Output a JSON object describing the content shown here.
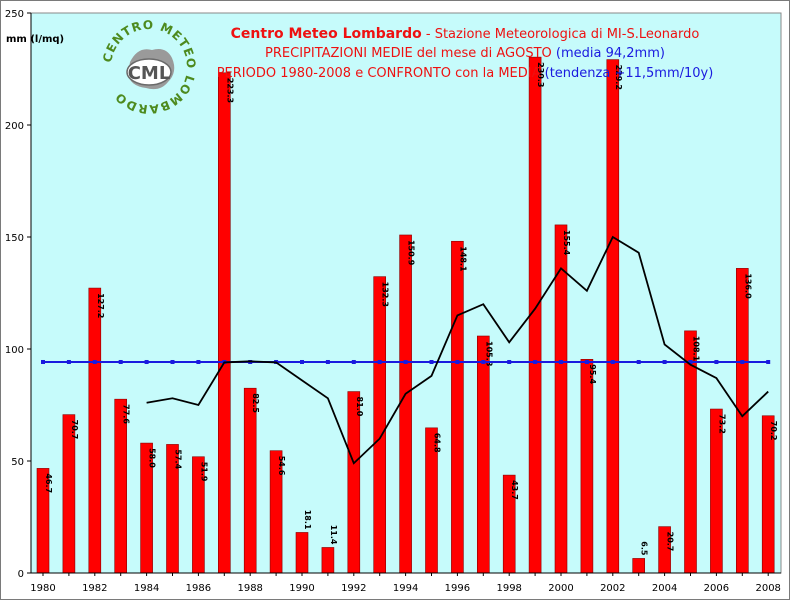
{
  "header": {
    "org": "Centro Meteo Lombardo",
    "station": " - Stazione Meteorologica di MI-S.Leonardo",
    "line2_main": "PRECIPITAZIONI MEDIE del mese di AGOSTO",
    "line2_mean": " (media 94,2mm)",
    "line3_main": "PERIODO 1980-2008 e CONFRONTO con la MEDIA",
    "line3_trend": " (tendenza +11,5mm/10y)"
  },
  "logo": {
    "ring_text": "CENTRO METEO LOMBARDO",
    "badge": "CML"
  },
  "colors": {
    "plot_bg": "#c6fbfb",
    "bar": "#ff0000",
    "mean_line": "#1a1adf",
    "moving_avg": "#000000"
  },
  "chart_data": {
    "type": "bar",
    "ylabel": "mm (l/mq)",
    "ylim": [
      0,
      250
    ],
    "yticks": [
      0,
      50,
      100,
      150,
      200,
      250
    ],
    "x_tick_labels": [
      "1980",
      "1982",
      "1984",
      "1986",
      "1988",
      "1990",
      "1992",
      "1994",
      "1996",
      "1998",
      "2000",
      "2002",
      "2004",
      "2006",
      "2008"
    ],
    "categories": [
      1980,
      1981,
      1982,
      1983,
      1984,
      1985,
      1986,
      1987,
      1988,
      1989,
      1990,
      1991,
      1992,
      1993,
      1994,
      1995,
      1996,
      1997,
      1998,
      1999,
      2000,
      2001,
      2002,
      2003,
      2004,
      2005,
      2006,
      2007,
      2008
    ],
    "series": [
      {
        "type": "bar",
        "values": [
          46.7,
          70.7,
          127.2,
          77.6,
          58.0,
          57.4,
          51.9,
          223.3,
          82.5,
          54.6,
          18.1,
          11.4,
          81.0,
          132.3,
          150.9,
          64.8,
          148.1,
          105.8,
          43.7,
          230.3,
          155.4,
          95.4,
          229.2,
          6.5,
          20.7,
          108.1,
          73.2,
          136.0,
          70.2
        ],
        "labels": [
          "46.7",
          "70.7",
          "127.2",
          "77.6",
          "58.0",
          "57.4",
          "51.9",
          "223.3",
          "82.5",
          "54.6",
          "18.1",
          "11.4",
          "81.0",
          "132.3",
          "150.9",
          "64.8",
          "148.1",
          "105.8",
          "43.7",
          "230.3",
          "155.4",
          "95.4",
          "229.2",
          "6.5",
          "20.7",
          "108.1",
          "73.2",
          "136.0",
          "70.2"
        ]
      },
      {
        "type": "line",
        "values": [
          94.2,
          94.2,
          94.2,
          94.2,
          94.2,
          94.2,
          94.2,
          94.2,
          94.2,
          94.2,
          94.2,
          94.2,
          94.2,
          94.2,
          94.2,
          94.2,
          94.2,
          94.2,
          94.2,
          94.2,
          94.2,
          94.2,
          94.2,
          94.2,
          94.2,
          94.2,
          94.2,
          94.2,
          94.2
        ]
      },
      {
        "type": "line",
        "values": [
          null,
          null,
          null,
          null,
          76,
          78,
          75,
          94,
          94.5,
          94,
          86,
          78,
          49,
          60,
          80,
          88,
          115,
          120,
          103,
          118,
          136,
          126,
          150,
          143,
          102,
          93,
          87,
          70,
          81
        ]
      }
    ],
    "grid": false
  }
}
